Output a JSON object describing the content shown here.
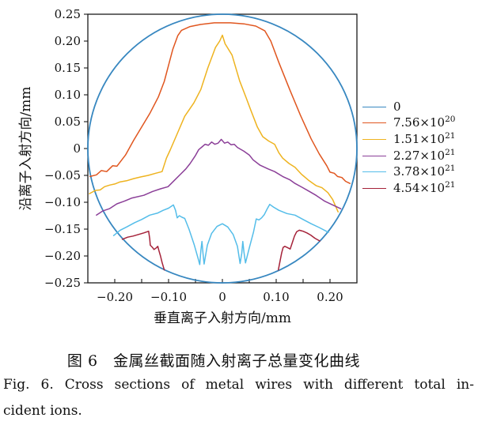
{
  "figure": {
    "caption_zh": "图 6　金属丝截面随入射离子总量变化曲线",
    "caption_en_line1": "Fig. 6. Cross sections of metal wires with different total in-",
    "caption_en_line2": "cident ions."
  },
  "chart_data": {
    "type": "line",
    "title": "",
    "xlabel": "垂直离子入射方向/mm",
    "ylabel": "沿离子入射方向/mm",
    "xlim": [
      -0.25,
      0.25
    ],
    "ylim": [
      -0.25,
      0.25
    ],
    "grid": false,
    "frame_color": "#1a1a1a",
    "legend_position": "right-outside",
    "x_ticks": [
      {
        "v": -0.2,
        "label": "−0.20"
      },
      {
        "v": -0.1,
        "label": "−0.10"
      },
      {
        "v": 0.0,
        "label": "0"
      },
      {
        "v": 0.1,
        "label": "0.10"
      },
      {
        "v": 0.2,
        "label": "0.20"
      }
    ],
    "x_minor_ticks": [
      -0.15,
      -0.05,
      0.05,
      0.15
    ],
    "y_ticks": [
      {
        "v": 0.25,
        "label": "0.25"
      },
      {
        "v": 0.2,
        "label": "0.20"
      },
      {
        "v": 0.15,
        "label": "0.15"
      },
      {
        "v": 0.1,
        "label": "0.10"
      },
      {
        "v": 0.05,
        "label": "0.05"
      },
      {
        "v": 0.0,
        "label": "0"
      },
      {
        "v": -0.05,
        "label": "−0.05"
      },
      {
        "v": -0.1,
        "label": "−0.10"
      },
      {
        "v": -0.15,
        "label": "−0.15"
      },
      {
        "v": -0.2,
        "label": "−0.20"
      },
      {
        "v": -0.25,
        "label": "−0.25"
      }
    ],
    "series": [
      {
        "label": "0",
        "sup": "",
        "color": "#3787c0",
        "kind": "circle",
        "center": [
          0,
          0
        ],
        "radius": 0.25,
        "width": 1.8
      },
      {
        "label": "7.56×10",
        "sup": "20",
        "color": "#e0561f",
        "kind": "line",
        "width": 1.5,
        "segments": [
          [
            [
              -0.246,
              -0.052
            ],
            [
              -0.234,
              -0.049
            ],
            [
              -0.225,
              -0.041
            ],
            [
              -0.215,
              -0.043
            ],
            [
              -0.204,
              -0.032
            ],
            [
              -0.196,
              -0.033
            ],
            [
              -0.18,
              -0.012
            ],
            [
              -0.165,
              0.015
            ],
            [
              -0.15,
              0.04
            ],
            [
              -0.135,
              0.065
            ],
            [
              -0.119,
              0.096
            ],
            [
              -0.108,
              0.125
            ],
            [
              -0.1,
              0.155
            ],
            [
              -0.092,
              0.185
            ],
            [
              -0.083,
              0.21
            ],
            [
              -0.076,
              0.22
            ],
            [
              -0.06,
              0.227
            ],
            [
              -0.04,
              0.231
            ],
            [
              -0.015,
              0.234
            ],
            [
              0.015,
              0.234
            ],
            [
              0.04,
              0.232
            ],
            [
              0.062,
              0.228
            ],
            [
              0.079,
              0.219
            ],
            [
              0.09,
              0.2
            ],
            [
              0.105,
              0.16
            ],
            [
              0.125,
              0.11
            ],
            [
              0.145,
              0.062
            ],
            [
              0.165,
              0.018
            ],
            [
              0.18,
              -0.01
            ],
            [
              0.194,
              -0.032
            ],
            [
              0.2,
              -0.044
            ],
            [
              0.208,
              -0.046
            ],
            [
              0.214,
              -0.052
            ],
            [
              0.222,
              -0.054
            ],
            [
              0.229,
              -0.061
            ],
            [
              0.237,
              -0.065
            ]
          ]
        ]
      },
      {
        "label": "1.51×10",
        "sup": "21",
        "color": "#eeb31f",
        "kind": "line",
        "width": 1.5,
        "segments": [
          [
            [
              -0.247,
              -0.084
            ],
            [
              -0.236,
              -0.078
            ],
            [
              -0.227,
              -0.077
            ],
            [
              -0.219,
              -0.071
            ],
            [
              -0.209,
              -0.068
            ],
            [
              -0.2,
              -0.066
            ],
            [
              -0.19,
              -0.062
            ],
            [
              -0.178,
              -0.06
            ],
            [
              -0.165,
              -0.056
            ],
            [
              -0.152,
              -0.053
            ],
            [
              -0.138,
              -0.05
            ],
            [
              -0.124,
              -0.046
            ],
            [
              -0.112,
              -0.043
            ],
            [
              -0.104,
              -0.018
            ],
            [
              -0.097,
              -0.003
            ],
            [
              -0.085,
              0.025
            ],
            [
              -0.07,
              0.06
            ],
            [
              -0.053,
              0.085
            ],
            [
              -0.04,
              0.11
            ],
            [
              -0.027,
              0.15
            ],
            [
              -0.013,
              0.188
            ],
            [
              -0.005,
              0.2
            ],
            [
              0.0,
              0.211
            ],
            [
              0.005,
              0.195
            ],
            [
              0.018,
              0.174
            ],
            [
              0.032,
              0.126
            ],
            [
              0.044,
              0.095
            ],
            [
              0.053,
              0.071
            ],
            [
              0.065,
              0.04
            ],
            [
              0.075,
              0.022
            ],
            [
              0.086,
              0.014
            ],
            [
              0.097,
              0.008
            ],
            [
              0.105,
              -0.008
            ],
            [
              0.112,
              -0.018
            ],
            [
              0.124,
              -0.028
            ],
            [
              0.135,
              -0.035
            ],
            [
              0.147,
              -0.048
            ],
            [
              0.16,
              -0.059
            ],
            [
              0.174,
              -0.069
            ],
            [
              0.185,
              -0.073
            ],
            [
              0.196,
              -0.082
            ],
            [
              0.205,
              -0.095
            ],
            [
              0.215,
              -0.118
            ]
          ]
        ]
      },
      {
        "label": "2.27×10",
        "sup": "21",
        "color": "#8b3f98",
        "kind": "line",
        "width": 1.5,
        "segments": [
          [
            [
              -0.234,
              -0.124
            ],
            [
              -0.222,
              -0.116
            ],
            [
              -0.21,
              -0.112
            ],
            [
              -0.196,
              -0.103
            ],
            [
              -0.182,
              -0.098
            ],
            [
              -0.168,
              -0.092
            ],
            [
              -0.146,
              -0.087
            ],
            [
              -0.13,
              -0.08
            ],
            [
              -0.115,
              -0.075
            ],
            [
              -0.101,
              -0.071
            ],
            [
              -0.09,
              -0.06
            ],
            [
              -0.078,
              -0.048
            ],
            [
              -0.068,
              -0.038
            ],
            [
              -0.06,
              -0.028
            ],
            [
              -0.05,
              -0.013
            ],
            [
              -0.044,
              -0.002
            ],
            [
              -0.038,
              0.003
            ],
            [
              -0.032,
              0.008
            ],
            [
              -0.026,
              0.006
            ],
            [
              -0.02,
              0.012
            ],
            [
              -0.014,
              0.008
            ],
            [
              -0.008,
              0.01
            ],
            [
              -0.002,
              0.017
            ],
            [
              0.004,
              0.01
            ],
            [
              0.01,
              0.012
            ],
            [
              0.016,
              0.007
            ],
            [
              0.022,
              0.008
            ],
            [
              0.028,
              0.002
            ],
            [
              0.04,
              -0.005
            ],
            [
              0.05,
              -0.012
            ],
            [
              0.057,
              -0.021
            ],
            [
              0.07,
              -0.031
            ],
            [
              0.085,
              -0.038
            ],
            [
              0.097,
              -0.043
            ],
            [
              0.112,
              -0.052
            ],
            [
              0.125,
              -0.058
            ],
            [
              0.135,
              -0.065
            ],
            [
              0.148,
              -0.072
            ],
            [
              0.16,
              -0.079
            ],
            [
              0.174,
              -0.087
            ],
            [
              0.19,
              -0.098
            ],
            [
              0.205,
              -0.105
            ],
            [
              0.22,
              -0.112
            ]
          ]
        ]
      },
      {
        "label": "3.78×10",
        "sup": "21",
        "color": "#54bde9",
        "kind": "line",
        "width": 1.5,
        "segments": [
          [
            [
              -0.202,
              -0.162
            ],
            [
              -0.19,
              -0.152
            ],
            [
              -0.178,
              -0.146
            ],
            [
              -0.163,
              -0.138
            ],
            [
              -0.15,
              -0.132
            ],
            [
              -0.135,
              -0.124
            ],
            [
              -0.12,
              -0.12
            ],
            [
              -0.11,
              -0.115
            ],
            [
              -0.1,
              -0.111
            ],
            [
              -0.091,
              -0.105
            ],
            [
              -0.087,
              -0.115
            ],
            [
              -0.084,
              -0.129
            ],
            [
              -0.08,
              -0.125
            ],
            [
              -0.075,
              -0.128
            ],
            [
              -0.07,
              -0.13
            ],
            [
              -0.062,
              -0.15
            ],
            [
              -0.052,
              -0.18
            ],
            [
              -0.045,
              -0.205
            ],
            [
              -0.042,
              -0.216
            ],
            [
              -0.04,
              -0.19
            ],
            [
              -0.038,
              -0.173
            ],
            [
              -0.036,
              -0.195
            ],
            [
              -0.034,
              -0.215
            ],
            [
              -0.028,
              -0.18
            ],
            [
              -0.02,
              -0.158
            ],
            [
              -0.01,
              -0.145
            ],
            [
              0.0,
              -0.14
            ],
            [
              0.01,
              -0.146
            ],
            [
              0.02,
              -0.16
            ],
            [
              0.028,
              -0.182
            ],
            [
              0.033,
              -0.214
            ],
            [
              0.036,
              -0.195
            ],
            [
              0.038,
              -0.173
            ],
            [
              0.04,
              -0.192
            ],
            [
              0.043,
              -0.213
            ],
            [
              0.05,
              -0.185
            ],
            [
              0.058,
              -0.155
            ],
            [
              0.063,
              -0.131
            ],
            [
              0.068,
              -0.133
            ],
            [
              0.073,
              -0.129
            ],
            [
              0.078,
              -0.123
            ],
            [
              0.083,
              -0.113
            ],
            [
              0.088,
              -0.104
            ],
            [
              0.095,
              -0.109
            ],
            [
              0.105,
              -0.115
            ],
            [
              0.12,
              -0.121
            ],
            [
              0.135,
              -0.124
            ],
            [
              0.15,
              -0.132
            ],
            [
              0.165,
              -0.14
            ],
            [
              0.18,
              -0.147
            ],
            [
              0.197,
              -0.156
            ]
          ]
        ]
      },
      {
        "label": "4.54×10",
        "sup": "21",
        "color": "#a52239",
        "kind": "line",
        "width": 1.5,
        "segments": [
          [
            [
              -0.186,
              -0.169
            ],
            [
              -0.176,
              -0.165
            ],
            [
              -0.166,
              -0.163
            ],
            [
              -0.156,
              -0.16
            ],
            [
              -0.146,
              -0.157
            ],
            [
              -0.137,
              -0.154
            ],
            [
              -0.135,
              -0.168
            ],
            [
              -0.134,
              -0.18
            ],
            [
              -0.13,
              -0.184
            ],
            [
              -0.127,
              -0.188
            ],
            [
              -0.123,
              -0.185
            ],
            [
              -0.12,
              -0.182
            ],
            [
              -0.118,
              -0.19
            ],
            [
              -0.115,
              -0.2
            ],
            [
              -0.112,
              -0.212
            ],
            [
              -0.108,
              -0.226
            ]
          ],
          [
            [
              0.104,
              -0.226
            ],
            [
              0.107,
              -0.21
            ],
            [
              0.11,
              -0.195
            ],
            [
              0.113,
              -0.184
            ],
            [
              0.116,
              -0.182
            ],
            [
              0.12,
              -0.184
            ],
            [
              0.126,
              -0.187
            ],
            [
              0.13,
              -0.175
            ],
            [
              0.134,
              -0.163
            ],
            [
              0.138,
              -0.155
            ],
            [
              0.143,
              -0.152
            ],
            [
              0.15,
              -0.154
            ],
            [
              0.157,
              -0.157
            ],
            [
              0.164,
              -0.161
            ],
            [
              0.172,
              -0.167
            ],
            [
              0.181,
              -0.172
            ]
          ]
        ]
      }
    ]
  }
}
